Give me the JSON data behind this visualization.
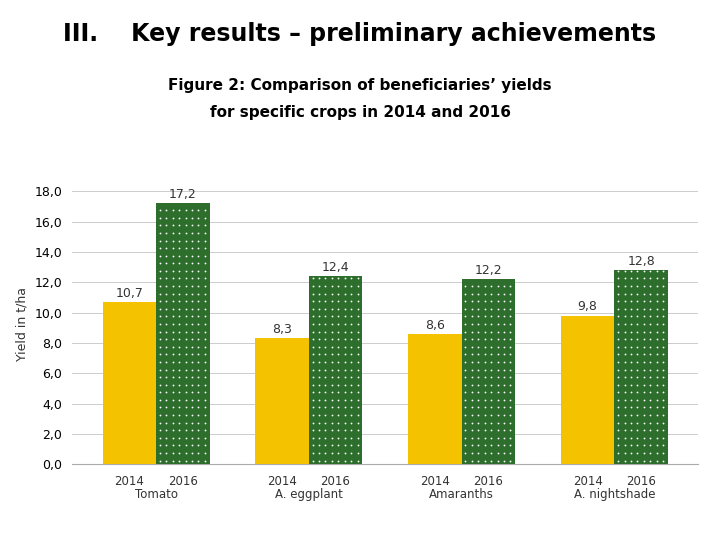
{
  "title_line1": "III.    Key results – preliminary achievements",
  "subtitle_line1": "Figure 2: Comparison of beneficiaries’ yields",
  "subtitle_line2": "for specific crops in 2014 and 2016",
  "ylabel": "Yield in t/ha",
  "groups": [
    "Tomato",
    "A. eggplant",
    "Amaranths",
    "A. nightshade"
  ],
  "years": [
    "2014",
    "2016"
  ],
  "values_2014": [
    10.7,
    8.3,
    8.6,
    9.8
  ],
  "values_2016": [
    17.2,
    12.4,
    12.2,
    12.8
  ],
  "color_2014": "#F5C200",
  "color_2016": "#2D6E2D",
  "dot_color": "#FFFFFF",
  "ylim": [
    0,
    18.5
  ],
  "yticks": [
    0.0,
    2.0,
    4.0,
    6.0,
    8.0,
    10.0,
    12.0,
    14.0,
    16.0,
    18.0
  ],
  "ytick_labels": [
    "0,0",
    "2,0",
    "4,0",
    "6,0",
    "8,0",
    "10,0",
    "12,0",
    "14,0",
    "16,0",
    "18,0"
  ],
  "background_color": "#FFFFFF",
  "title_color": "#000000",
  "bar_label_fontsize": 9,
  "axis_label_fontsize": 9,
  "group_label_fontsize": 8.5,
  "tick_label_fontsize": 9,
  "bar_width": 0.35,
  "title_fontsize": 17,
  "subtitle_fontsize": 11
}
